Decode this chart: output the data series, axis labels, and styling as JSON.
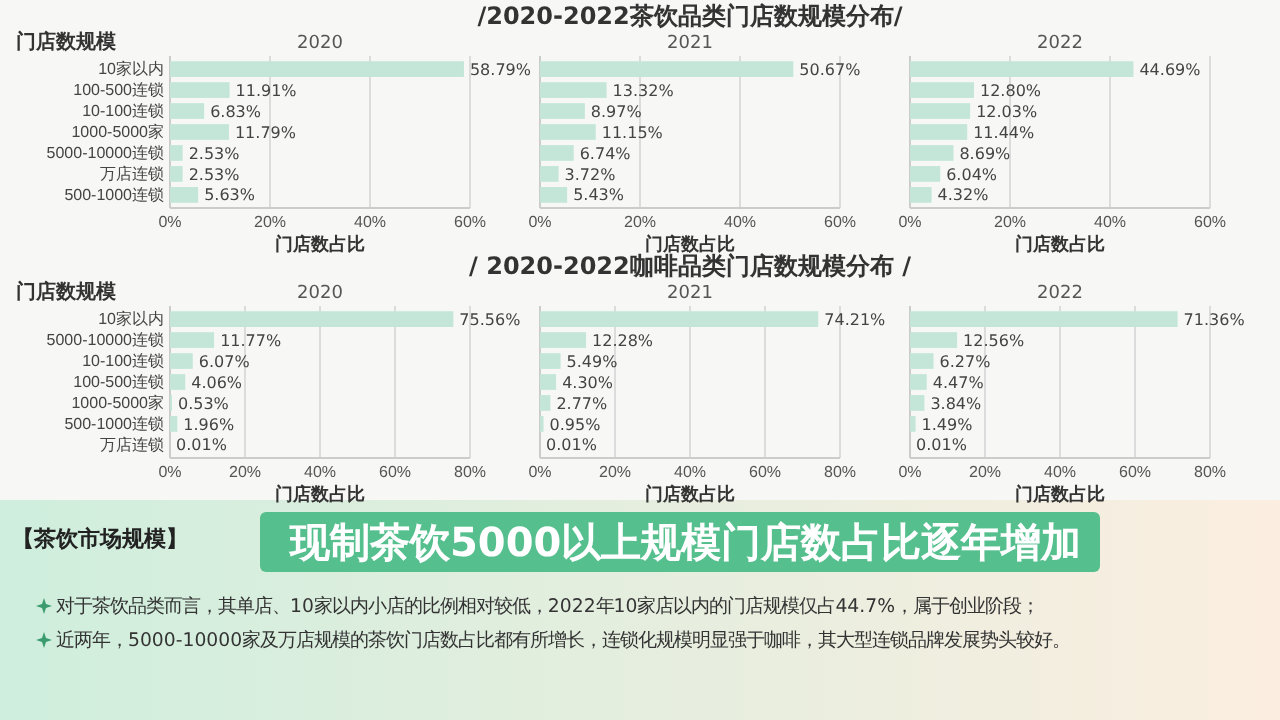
{
  "chart_data": [
    {
      "type": "bar",
      "orientation": "horizontal",
      "subtitle": "2020",
      "ylabel": "门店数规模",
      "xlabel": "门店数占比",
      "categories": [
        "10家以内",
        "100-500连锁",
        "10-100连锁",
        "1000-5000家",
        "5000-10000连锁",
        "万店连锁",
        "500-1000连锁"
      ],
      "values": [
        58.79,
        11.91,
        6.83,
        11.79,
        2.53,
        2.53,
        5.63
      ],
      "value_labels": [
        "58.79%",
        "11.91%",
        "6.83%",
        "11.79%",
        "2.53%",
        "2.53%",
        "5.63%"
      ],
      "color": "#c3e6d8",
      "xlim": [
        0,
        60
      ],
      "xticks": [
        {
          "value": 0,
          "label": "0%"
        },
        {
          "value": 20,
          "label": "20%"
        },
        {
          "value": 40,
          "label": "40%"
        },
        {
          "value": 60,
          "label": "60%"
        }
      ],
      "grid": "x"
    },
    {
      "type": "bar",
      "orientation": "horizontal",
      "title": "/2020-2022茶饮品类门店数规模分布/",
      "subtitle": "2021",
      "xlabel": "门店数占比",
      "categories": [
        null,
        null,
        null,
        null,
        null,
        null,
        null
      ],
      "values": [
        50.67,
        13.32,
        8.97,
        11.15,
        6.74,
        3.72,
        5.43
      ],
      "value_labels": [
        "50.67%",
        "13.32%",
        "8.97%",
        "11.15%",
        "6.74%",
        "3.72%",
        "5.43%"
      ],
      "color": "#c3e6d8",
      "xlim": [
        0,
        60
      ],
      "xticks": [
        {
          "value": 0,
          "label": "0%"
        },
        {
          "value": 20,
          "label": "20%"
        },
        {
          "value": 40,
          "label": "40%"
        },
        {
          "value": 60,
          "label": "60%"
        }
      ],
      "grid": "x",
      "tick_labels": "x"
    },
    {
      "type": "bar",
      "orientation": "horizontal",
      "subtitle": "2022",
      "xlabel": "门店数占比",
      "categories": [
        null,
        null,
        null,
        null,
        null,
        null,
        null
      ],
      "values": [
        44.69,
        12.8,
        12.03,
        11.44,
        8.69,
        6.04,
        4.32
      ],
      "value_labels": [
        "44.69%",
        "12.80%",
        "12.03%",
        "11.44%",
        "8.69%",
        "6.04%",
        "4.32%"
      ],
      "color": "#c3e6d8",
      "xlim": [
        0,
        60
      ],
      "xticks": [
        {
          "value": 0,
          "label": "0%"
        },
        {
          "value": 20,
          "label": "20%"
        },
        {
          "value": 40,
          "label": "40%"
        },
        {
          "value": 60,
          "label": "60%"
        }
      ],
      "grid": "x",
      "tick_labels": "x"
    },
    {
      "type": "bar",
      "orientation": "horizontal",
      "subtitle": "2020",
      "ylabel": "门店数规模",
      "xlabel": "门店数占比",
      "categories": [
        "10家以内",
        "5000-10000连锁",
        "10-100连锁",
        "100-500连锁",
        "1000-5000家",
        "500-1000连锁",
        "万店连锁"
      ],
      "values": [
        75.56,
        11.77,
        6.07,
        4.06,
        0.53,
        1.96,
        0.01
      ],
      "value_labels": [
        "75.56%",
        "11.77%",
        "6.07%",
        "4.06%",
        "0.53%",
        "1.96%",
        "0.01%"
      ],
      "color": "#c3e6d8",
      "xlim": [
        0,
        80
      ],
      "xticks": [
        {
          "value": 0,
          "label": "0%"
        },
        {
          "value": 20,
          "label": "20%"
        },
        {
          "value": 40,
          "label": "40%"
        },
        {
          "value": 60,
          "label": "60%"
        },
        {
          "value": 80,
          "label": "80%"
        }
      ],
      "grid": "x"
    },
    {
      "type": "bar",
      "orientation": "horizontal",
      "title": "/ 2020-2022咖啡品类门店数规模分布 /",
      "subtitle": "2021",
      "xlabel": "门店数占比",
      "categories": [
        null,
        null,
        null,
        null,
        null,
        null,
        null
      ],
      "values": [
        74.21,
        12.28,
        5.49,
        4.3,
        2.77,
        0.95,
        0.01
      ],
      "value_labels": [
        "74.21%",
        "12.28%",
        "5.49%",
        "4.30%",
        "2.77%",
        "0.95%",
        "0.01%"
      ],
      "color": "#c3e6d8",
      "xlim": [
        0,
        80
      ],
      "xticks": [
        {
          "value": 0,
          "label": "0%"
        },
        {
          "value": 20,
          "label": "20%"
        },
        {
          "value": 40,
          "label": "40%"
        },
        {
          "value": 60,
          "label": "60%"
        },
        {
          "value": 80,
          "label": "80%"
        }
      ],
      "grid": "x",
      "tick_labels": "x"
    },
    {
      "type": "bar",
      "orientation": "horizontal",
      "subtitle": "2022",
      "xlabel": "门店数占比",
      "categories": [
        null,
        null,
        null,
        null,
        null,
        null,
        null
      ],
      "values": [
        71.36,
        12.56,
        6.27,
        4.47,
        3.84,
        1.49,
        0.01
      ],
      "value_labels": [
        "71.36%",
        "12.56%",
        "6.27%",
        "4.47%",
        "3.84%",
        "1.49%",
        "0.01%"
      ],
      "color": "#c3e6d8",
      "xlim": [
        0,
        80
      ],
      "xticks": [
        {
          "value": 0,
          "label": "0%"
        },
        {
          "value": 20,
          "label": "20%"
        },
        {
          "value": 40,
          "label": "40%"
        },
        {
          "value": 60,
          "label": "60%"
        },
        {
          "value": 80,
          "label": "80%"
        }
      ],
      "grid": "x",
      "tick_labels": "x"
    },
    {
      "type": "other",
      "title": "现制茶饮5000以上规模门店数占比逐年增加",
      "subtitle": "【茶饮市场规模】",
      "annotations": [
        "对于茶饮品类而言，其单店、10家以内小店的比例相对较低，2022年10家店以内的门店规模仅占44.7%，属于创业阶段；",
        "近两年，5000-10000家及万店规模的茶饮门店数占比都有所增长，连锁化规模明显强于咖啡，其大型连锁品牌发展势头较好。"
      ]
    }
  ]
}
